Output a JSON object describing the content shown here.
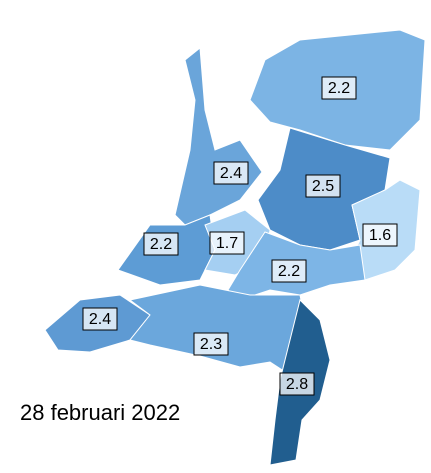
{
  "map": {
    "date": "28 februari 2022",
    "regions": [
      {
        "value": 2.2,
        "color": "#7cb4e4"
      },
      {
        "value": 2.4,
        "color": "#6aa5da"
      },
      {
        "value": 2.5,
        "color": "#4d8cc8"
      },
      {
        "value": 1.6,
        "color": "#b9dcf7"
      },
      {
        "value": 2.2,
        "color": "#5d9cd5"
      },
      {
        "value": 1.7,
        "color": "#a5cff2"
      },
      {
        "value": 2.2,
        "color": "#7db5e6"
      },
      {
        "value": 2.4,
        "color": "#5e9ad3"
      },
      {
        "value": 2.3,
        "color": "#6ba7dc"
      },
      {
        "value": 2.8,
        "color": "#215e8f"
      }
    ]
  }
}
